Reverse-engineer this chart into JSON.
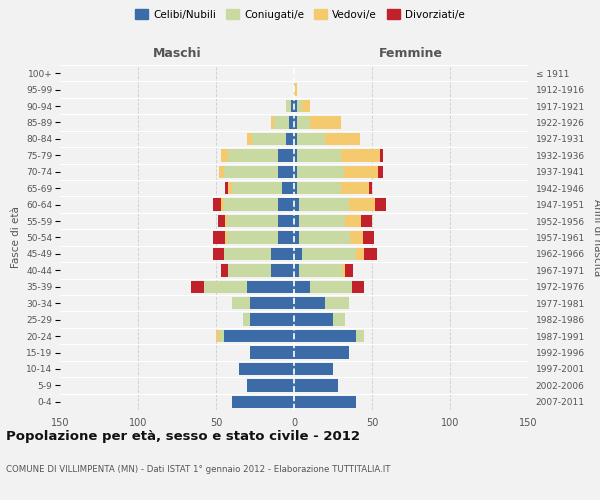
{
  "age_groups": [
    "0-4",
    "5-9",
    "10-14",
    "15-19",
    "20-24",
    "25-29",
    "30-34",
    "35-39",
    "40-44",
    "45-49",
    "50-54",
    "55-59",
    "60-64",
    "65-69",
    "70-74",
    "75-79",
    "80-84",
    "85-89",
    "90-94",
    "95-99",
    "100+"
  ],
  "birth_years": [
    "2007-2011",
    "2002-2006",
    "1997-2001",
    "1992-1996",
    "1987-1991",
    "1982-1986",
    "1977-1981",
    "1972-1976",
    "1967-1971",
    "1962-1966",
    "1957-1961",
    "1952-1956",
    "1947-1951",
    "1942-1946",
    "1937-1941",
    "1932-1936",
    "1927-1931",
    "1922-1926",
    "1917-1921",
    "1912-1916",
    "≤ 1911"
  ],
  "colors": {
    "celibe": "#3c6ca8",
    "coniugato": "#c8daa2",
    "vedovo": "#f5c96e",
    "divorziato": "#c0212a"
  },
  "maschi": {
    "celibe": [
      40,
      30,
      35,
      28,
      45,
      28,
      28,
      30,
      15,
      15,
      10,
      10,
      10,
      8,
      10,
      10,
      5,
      3,
      2,
      0,
      0
    ],
    "coniugato": [
      0,
      0,
      0,
      0,
      3,
      5,
      12,
      28,
      27,
      30,
      33,
      33,
      35,
      32,
      35,
      32,
      22,
      10,
      3,
      0,
      0
    ],
    "vedovo": [
      0,
      0,
      0,
      0,
      2,
      0,
      0,
      0,
      0,
      0,
      1,
      1,
      2,
      2,
      3,
      5,
      3,
      2,
      0,
      0,
      0
    ],
    "divorziato": [
      0,
      0,
      0,
      0,
      0,
      0,
      0,
      8,
      5,
      7,
      8,
      5,
      5,
      2,
      0,
      0,
      0,
      0,
      0,
      0,
      0
    ]
  },
  "femmine": {
    "nubile": [
      40,
      28,
      25,
      35,
      40,
      25,
      20,
      10,
      3,
      5,
      3,
      3,
      3,
      2,
      2,
      2,
      2,
      2,
      2,
      0,
      0
    ],
    "coniugata": [
      0,
      0,
      0,
      0,
      5,
      8,
      15,
      27,
      28,
      35,
      33,
      30,
      32,
      28,
      30,
      28,
      18,
      8,
      3,
      0,
      0
    ],
    "vedova": [
      0,
      0,
      0,
      0,
      0,
      0,
      0,
      0,
      2,
      5,
      8,
      10,
      17,
      18,
      22,
      25,
      22,
      20,
      5,
      2,
      0
    ],
    "divorziata": [
      0,
      0,
      0,
      0,
      0,
      0,
      0,
      8,
      5,
      8,
      7,
      7,
      7,
      2,
      3,
      2,
      0,
      0,
      0,
      0,
      0
    ]
  },
  "title": "Popolazione per età, sesso e stato civile - 2012",
  "subtitle": "COMUNE DI VILLIMPENTA (MN) - Dati ISTAT 1° gennaio 2012 - Elaborazione TUTTITALIA.IT",
  "xlabel_left": "Maschi",
  "xlabel_right": "Femmine",
  "ylabel_left": "Fasce di età",
  "ylabel_right": "Anni di nascita",
  "xlim": 150,
  "legend_labels": [
    "Celibi/Nubili",
    "Coniugati/e",
    "Vedovi/e",
    "Divorziati/e"
  ],
  "background_color": "#f2f2f2"
}
